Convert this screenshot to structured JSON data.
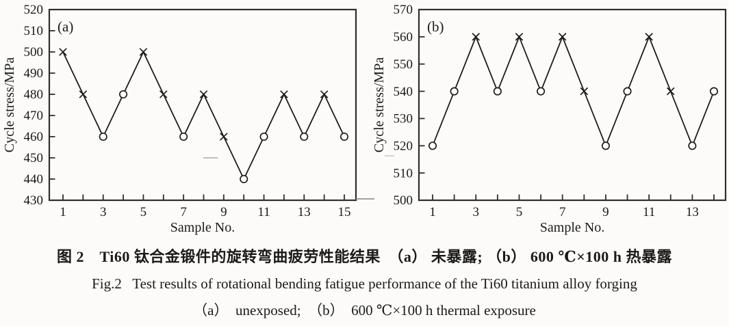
{
  "figure_captions": {
    "caption_zh": "图 2　Ti60 钛合金锻件的旋转弯曲疲劳性能结果　（a） 未暴露; （b） 600 ℃×100 h 热暴露",
    "caption_en_line1": "Fig.2   Test results of rotational bending fatigue performance of the Ti60 titanium alloy forging",
    "caption_en_line2": "（a）  unexposed;  （b）  600 ℃×100 h thermal exposure"
  },
  "colors": {
    "line": "#1c1c1c",
    "frame": "#2e2e2e",
    "text": "#1a1a1a",
    "background": "#fcfbfa"
  },
  "chart_data": [
    {
      "type": "line",
      "panel_label": "(a)",
      "xlabel": "Sample No.",
      "ylabel": "Cycle stress/MPa",
      "xlim": [
        1,
        15
      ],
      "ylim": [
        430,
        520
      ],
      "ytick_step": 10,
      "yticks": [
        430,
        440,
        450,
        460,
        470,
        480,
        490,
        500,
        510,
        520
      ],
      "xticks_labeled": [
        1,
        3,
        5,
        7,
        9,
        11,
        13,
        15
      ],
      "grid": false,
      "legend": "none",
      "x": [
        1,
        2,
        3,
        4,
        5,
        6,
        7,
        8,
        9,
        10,
        11,
        12,
        13,
        14,
        15
      ],
      "values": [
        500,
        480,
        460,
        480,
        500,
        480,
        460,
        480,
        460,
        440,
        460,
        480,
        460,
        480,
        460
      ],
      "markers": [
        "x",
        "x",
        "o",
        "o",
        "x",
        "x",
        "o",
        "x",
        "x",
        "o",
        "o",
        "x",
        "o",
        "x",
        "o"
      ]
    },
    {
      "type": "line",
      "panel_label": "(b)",
      "xlabel": "Sample No.",
      "ylabel": "Cycle stress/MPa",
      "xlim": [
        1,
        14
      ],
      "ylim": [
        500,
        570
      ],
      "ytick_step": 10,
      "yticks": [
        500,
        510,
        520,
        530,
        540,
        550,
        560,
        570
      ],
      "xticks_labeled": [
        1,
        3,
        5,
        7,
        9,
        11,
        13
      ],
      "grid": false,
      "legend": "none",
      "x": [
        1,
        2,
        3,
        4,
        5,
        6,
        7,
        8,
        9,
        10,
        11,
        12,
        13,
        14
      ],
      "values": [
        520,
        540,
        560,
        540,
        560,
        540,
        560,
        540,
        520,
        540,
        560,
        540,
        520,
        540
      ],
      "markers": [
        "o",
        "o",
        "x",
        "o",
        "x",
        "o",
        "x",
        "x",
        "o",
        "o",
        "x",
        "x",
        "o",
        "o"
      ]
    }
  ]
}
